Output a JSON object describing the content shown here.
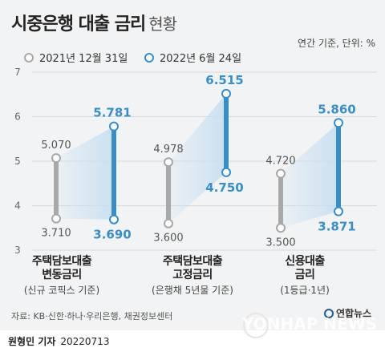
{
  "title": {
    "main": "시중은행 대출 금리",
    "sub": "현황"
  },
  "unit_note": "연간 기준, 단위: %",
  "colors": {
    "series1": "#a8a8a8",
    "series2": "#3a8ec6",
    "band": "#c9dff1",
    "panel": "#f2f3f4"
  },
  "chart_data": {
    "type": "dumbbell",
    "ylim": [
      3,
      7
    ],
    "yticks": [
      "3",
      "4",
      "5",
      "6",
      "7"
    ],
    "grid": true,
    "legend_position": "top-left",
    "series": [
      {
        "name": "2021년 12월 31일",
        "values": [
          [
            5.07,
            3.71
          ],
          [
            4.978,
            3.6
          ],
          [
            4.72,
            3.5
          ]
        ]
      },
      {
        "name": "2022년 6월 24일",
        "values": [
          [
            5.781,
            3.69
          ],
          [
            6.515,
            4.75
          ],
          [
            5.86,
            3.871
          ]
        ]
      }
    ],
    "categories": [
      {
        "l1": "주택담보대출",
        "l2": "변동금리",
        "note": "(신규 코픽스 기준)"
      },
      {
        "l1": "주택담보대출",
        "l2": "고정금리",
        "note": "(은행채 5년물 기준)"
      },
      {
        "l1": "신용대출",
        "l2": "금리",
        "note": "(1등급·1년)"
      }
    ],
    "labels": {
      "s1_high": [
        "5.070",
        "4.978",
        "4.720"
      ],
      "s1_low": [
        "3.710",
        "3.600",
        "3.500"
      ],
      "s2_high": [
        "5.781",
        "6.515",
        "5.860"
      ],
      "s2_low": [
        "3.690",
        "4.750",
        "3.871"
      ]
    }
  },
  "source": "자료: KB·신한·하나·우리은행, 채권정보센터",
  "agency": "연합뉴스",
  "watermark": "YONHAP NEWS",
  "footer": {
    "name": "원형민 기자",
    "date": "20220713"
  }
}
